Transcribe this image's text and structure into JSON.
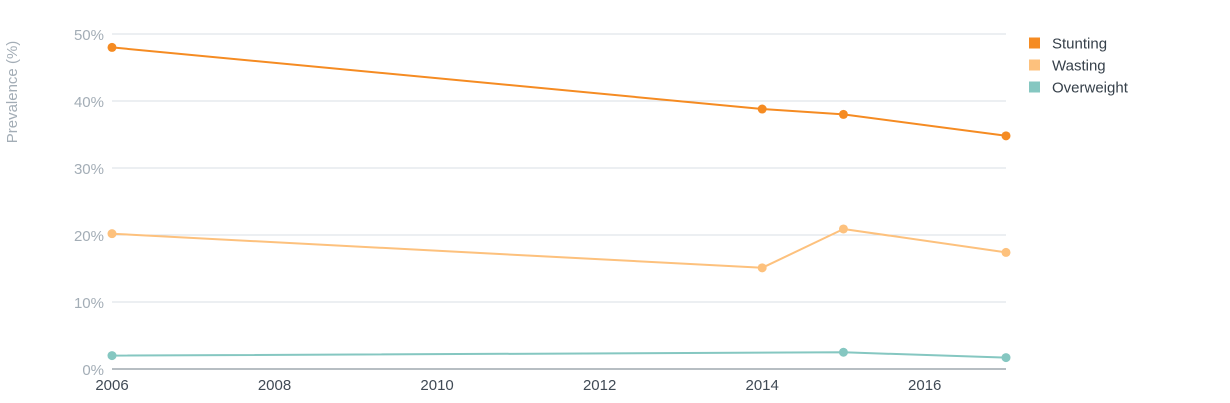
{
  "chart_data": {
    "type": "line",
    "ylabel": "Prevalence (%)",
    "xlabel": "",
    "title": "",
    "xlim": [
      2006,
      2017
    ],
    "ylim": [
      0,
      50
    ],
    "x_ticks": [
      2006,
      2008,
      2010,
      2012,
      2014,
      2016
    ],
    "x_tick_labels": [
      "2006",
      "2008",
      "2010",
      "2012",
      "2014",
      "2016"
    ],
    "y_ticks": [
      0,
      10,
      20,
      30,
      40,
      50
    ],
    "y_tick_labels": [
      "0%",
      "10%",
      "20%",
      "30%",
      "40%",
      "50%"
    ],
    "grid": true,
    "legend_position": "top-right",
    "series": [
      {
        "name": "Stunting",
        "color": "#f58b22",
        "points": [
          {
            "x": 2006,
            "y": 48.0
          },
          {
            "x": 2014,
            "y": 38.8
          },
          {
            "x": 2015,
            "y": 38.0
          },
          {
            "x": 2017,
            "y": 34.8
          }
        ]
      },
      {
        "name": "Wasting",
        "color": "#fdc17d",
        "points": [
          {
            "x": 2006,
            "y": 20.2
          },
          {
            "x": 2014,
            "y": 15.1
          },
          {
            "x": 2015,
            "y": 20.9
          },
          {
            "x": 2017,
            "y": 17.4
          }
        ]
      },
      {
        "name": "Overweight",
        "color": "#85c7c1",
        "points": [
          {
            "x": 2006,
            "y": 2.0
          },
          {
            "x": 2015,
            "y": 2.5
          },
          {
            "x": 2017,
            "y": 1.7
          }
        ]
      }
    ]
  }
}
